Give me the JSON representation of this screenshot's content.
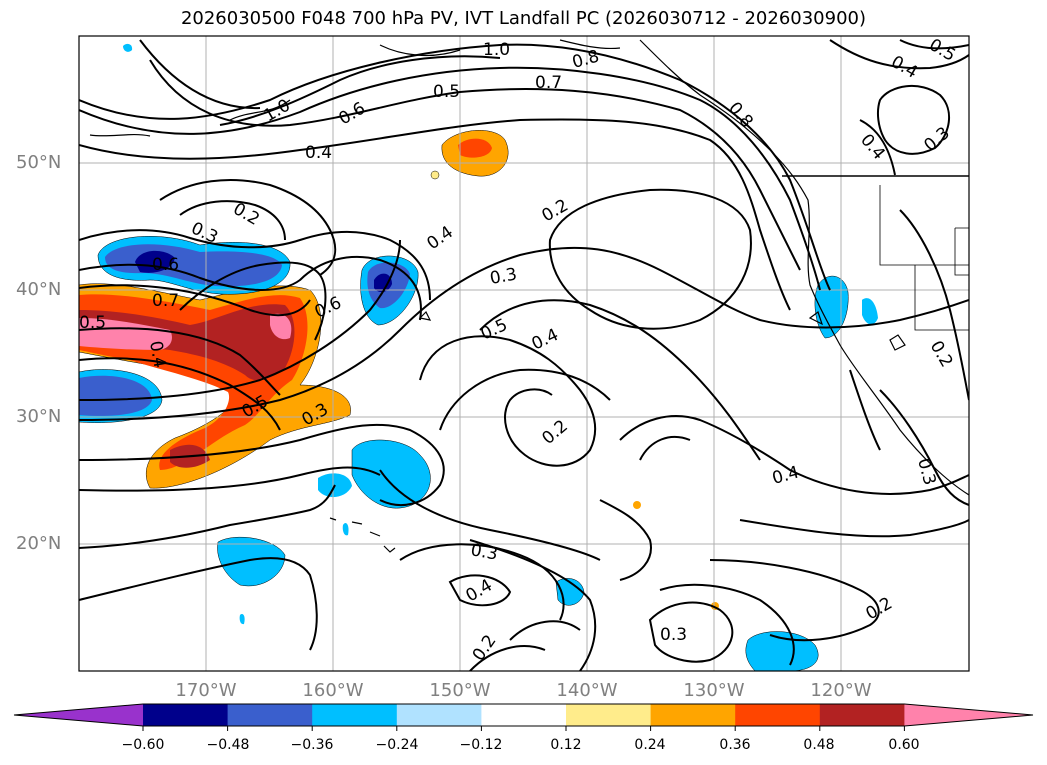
{
  "title": "2026030500 F048 700 hPa PV, IVT Landfall PC (2026030712 - 2026030900)",
  "lat_labels": [
    "50°N",
    "40°N",
    "30°N",
    "20°N"
  ],
  "lon_labels": [
    "170°W",
    "160°W",
    "150°W",
    "140°W",
    "130°W",
    "120°W"
  ],
  "colorbar": {
    "ticks": [
      "−0.60",
      "−0.48",
      "−0.36",
      "−0.24",
      "−0.12",
      "0.12",
      "0.24",
      "0.36",
      "0.48",
      "0.60"
    ],
    "colors": [
      "#9932cc",
      "#00008b",
      "#3a5fcd",
      "#00bfff",
      "#b0e2ff",
      "#ffffff",
      "#ffec8b",
      "#ffa500",
      "#ff4500",
      "#b22222",
      "#ff82ab"
    ]
  },
  "contour_labels": [
    "1.0",
    "0.8",
    "0.7",
    "0.5",
    "0.8",
    "0.5",
    "0.4",
    "1.0",
    "0.6",
    "0.4",
    "0.4",
    "0.3",
    "0.2",
    "0.3",
    "0.6",
    "0.7",
    "0.5",
    "0.4",
    "0.4",
    "0.2",
    "0.3",
    "0.6",
    "0.5",
    "0.4",
    "0.5",
    "0.3",
    "0.2",
    "0.2",
    "0.4",
    "0.3",
    "0.3",
    "0.4",
    "0.2",
    "0.3",
    "0.2"
  ]
}
